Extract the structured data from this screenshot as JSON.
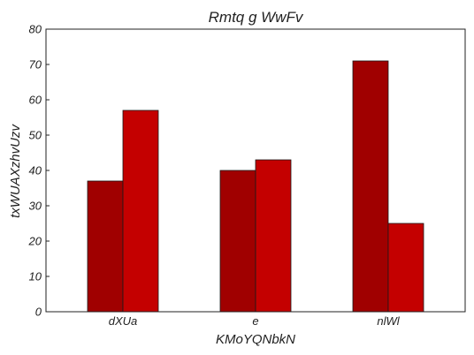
{
  "chart_data": {
    "type": "bar",
    "title": "Rmtq g WwFv",
    "xlabel": "KMoYQNbkN",
    "ylabel": "txWUAXzhvUzv",
    "categories": [
      "dXUa",
      "e",
      "nlWl"
    ],
    "series": [
      {
        "values": [
          37,
          40,
          71
        ],
        "color": "#a00000"
      },
      {
        "values": [
          57,
          43,
          25
        ],
        "color": "#c40000"
      }
    ],
    "ylim": [
      0,
      80
    ],
    "yticks": [
      0,
      10,
      20,
      30,
      40,
      50,
      60,
      70,
      80
    ],
    "grid": false,
    "legend": "none"
  }
}
